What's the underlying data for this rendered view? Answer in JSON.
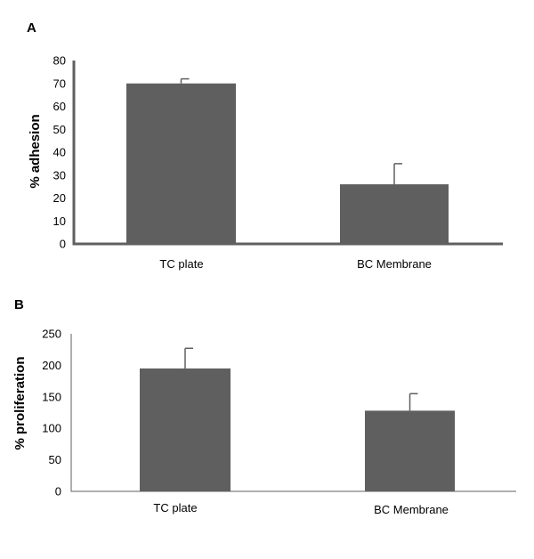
{
  "panels": [
    {
      "label": "A",
      "chart_data": {
        "type": "bar",
        "categories": [
          "TC plate",
          "BC Membrane"
        ],
        "values": [
          70,
          26
        ],
        "error_upper": [
          72,
          35
        ],
        "ylabel": "% adhesion",
        "xlabel": "",
        "ylim": [
          0,
          80
        ],
        "yticks": [
          0,
          10,
          20,
          30,
          40,
          50,
          60,
          70,
          80
        ],
        "bar_color": "#5f5f5f",
        "axis_color": "#5f5f5f",
        "grid": false
      }
    },
    {
      "label": "B",
      "chart_data": {
        "type": "bar",
        "categories": [
          "TC plate",
          "BC Membrane"
        ],
        "values": [
          195,
          128
        ],
        "error_upper": [
          227,
          155
        ],
        "ylabel": "% proliferation",
        "xlabel": "",
        "ylim": [
          0,
          250
        ],
        "yticks": [
          0,
          50,
          100,
          150,
          200,
          250
        ],
        "bar_color": "#5f5f5f",
        "axis_color": "#5f5f5f",
        "grid": false
      }
    }
  ]
}
